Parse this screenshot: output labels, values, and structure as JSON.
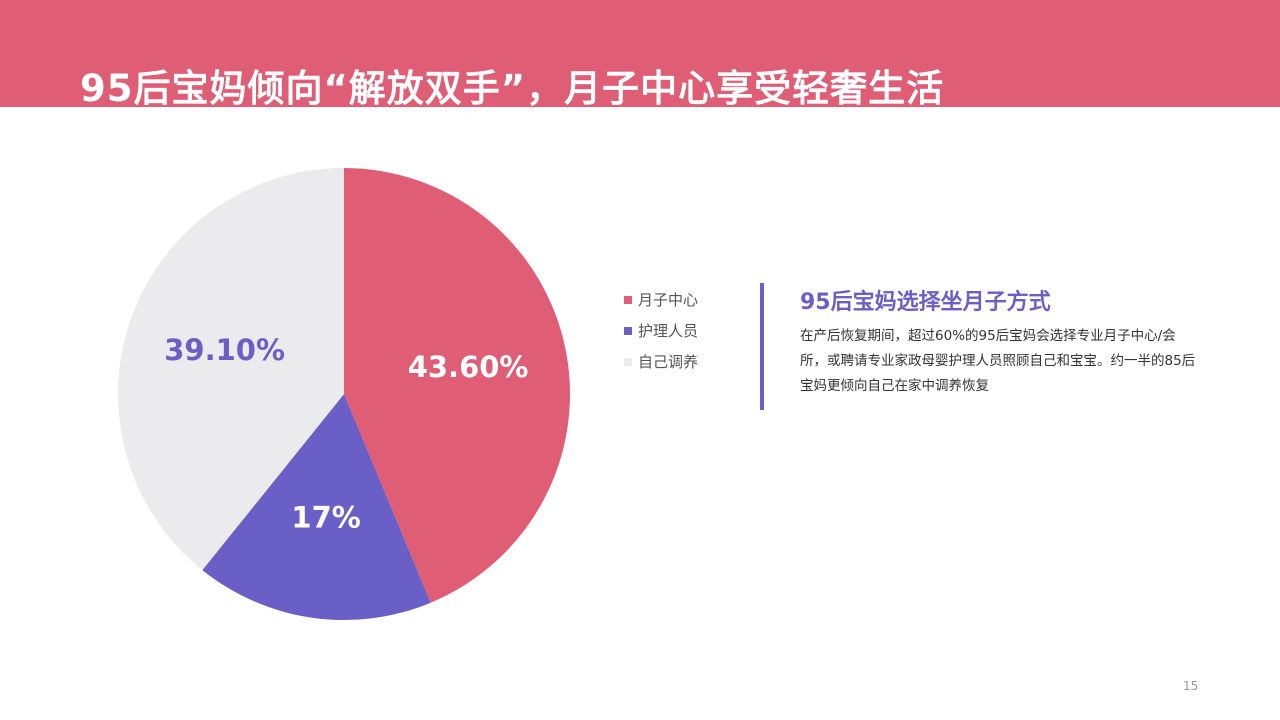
{
  "header": {
    "title": "95后宝妈倾向“解放双手”，月子中心享受轻奢生活"
  },
  "chart_data": {
    "type": "pie",
    "slices": [
      {
        "name": "月子中心",
        "value": 43.6,
        "label": "43.60%",
        "color": "#df5e76",
        "label_color": "#ffffff"
      },
      {
        "name": "护理人员",
        "value": 17.0,
        "label": "17%",
        "color": "#6a5fc6",
        "label_color": "#ffffff"
      },
      {
        "name": "自己调养",
        "value": 39.1,
        "label": "39.10%",
        "color": "#ebebed",
        "label_color": "#6a5fc6"
      }
    ],
    "legend_position": "right",
    "start_angle": "top, clockwise"
  },
  "side_panel": {
    "title": "95后宝妈选择坐月子方式",
    "body": "在产后恢复期间，超过60%的95后宝妈会选择专业月子中心/会所，或聘请专业家政母婴护理人员照顾自己和宝宝。约一半的85后宝妈更倾向自己在家中调养恢复"
  },
  "footer": {
    "page_number": "15"
  },
  "colors": {
    "accent_pink": "#df5e76",
    "accent_purple": "#6a5fc6",
    "neutral_gray": "#ebebed"
  }
}
